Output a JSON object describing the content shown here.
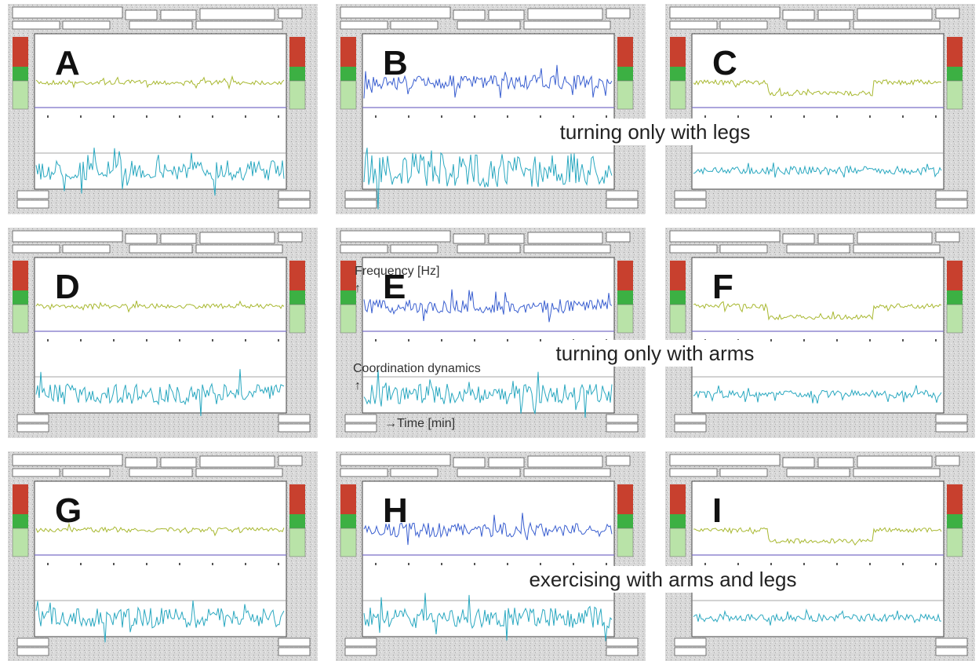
{
  "panels": [
    {
      "label": "A"
    },
    {
      "label": "B"
    },
    {
      "label": "C"
    },
    {
      "label": "D"
    },
    {
      "label": "E"
    },
    {
      "label": "F"
    },
    {
      "label": "G"
    },
    {
      "label": "H"
    },
    {
      "label": "I"
    }
  ],
  "captions": [
    "turning only with legs",
    "turning only with arms",
    "exercising with arms and legs"
  ],
  "axis_notes": {
    "frequency": "Frequency [Hz]",
    "coordination": "Coordination dynamics",
    "time": "→Time [min]",
    "up_arrow": "↑"
  }
}
